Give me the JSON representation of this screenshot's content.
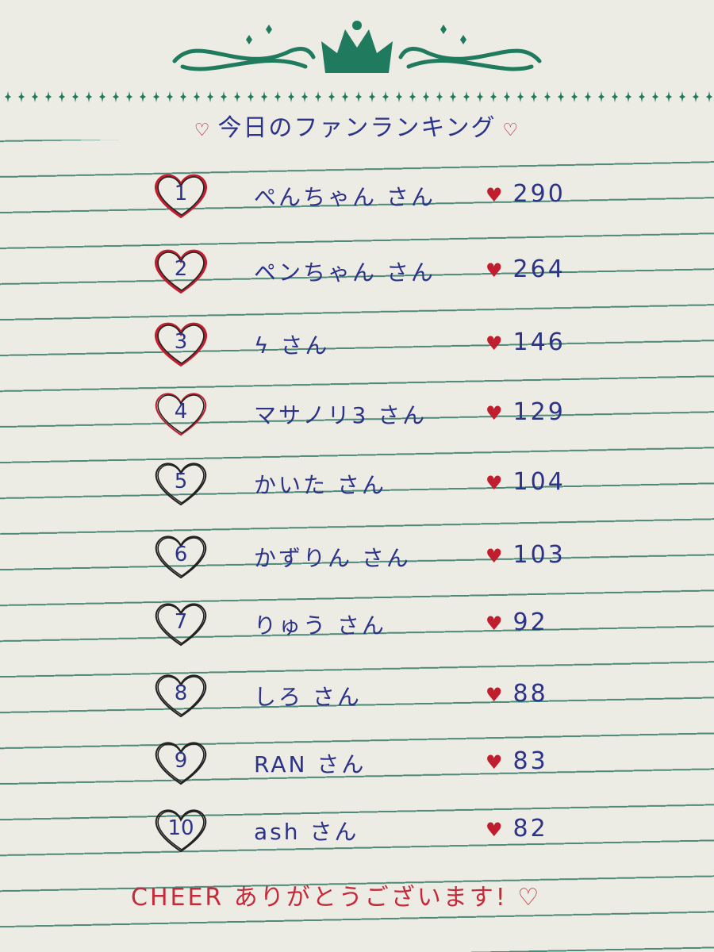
{
  "title": "今日のファンランキング",
  "colors": {
    "ink": "#2c3388",
    "heart": "#c01e2e",
    "ornament": "#1f7a5e",
    "lines": "#4f8a78",
    "footer": "#c52a3a"
  },
  "icons": {
    "title": "heart-outline-icon",
    "count": "heart-filled-icon",
    "rank": "heart-outline-icon",
    "header": "crown-icon"
  },
  "ranking": [
    {
      "rank": "1",
      "name": "ぺんちゃん さん",
      "count": "290"
    },
    {
      "rank": "2",
      "name": "ペンちゃん さん",
      "count": "264"
    },
    {
      "rank": "3",
      "name": "ϟ さん",
      "count": "146"
    },
    {
      "rank": "4",
      "name": "マサノリ3 さん",
      "count": "129"
    },
    {
      "rank": "5",
      "name": "かいた さん",
      "count": "104"
    },
    {
      "rank": "6",
      "name": "かずりん さん",
      "count": "103"
    },
    {
      "rank": "7",
      "name": "りゅう さん",
      "count": "92"
    },
    {
      "rank": "8",
      "name": "しろ さん",
      "count": "88"
    },
    {
      "rank": "9",
      "name": "RAN さん",
      "count": "83"
    },
    {
      "rank": "10",
      "name": "ash さん",
      "count": "82"
    }
  ],
  "footer": "CHEER ありがとうございます!"
}
